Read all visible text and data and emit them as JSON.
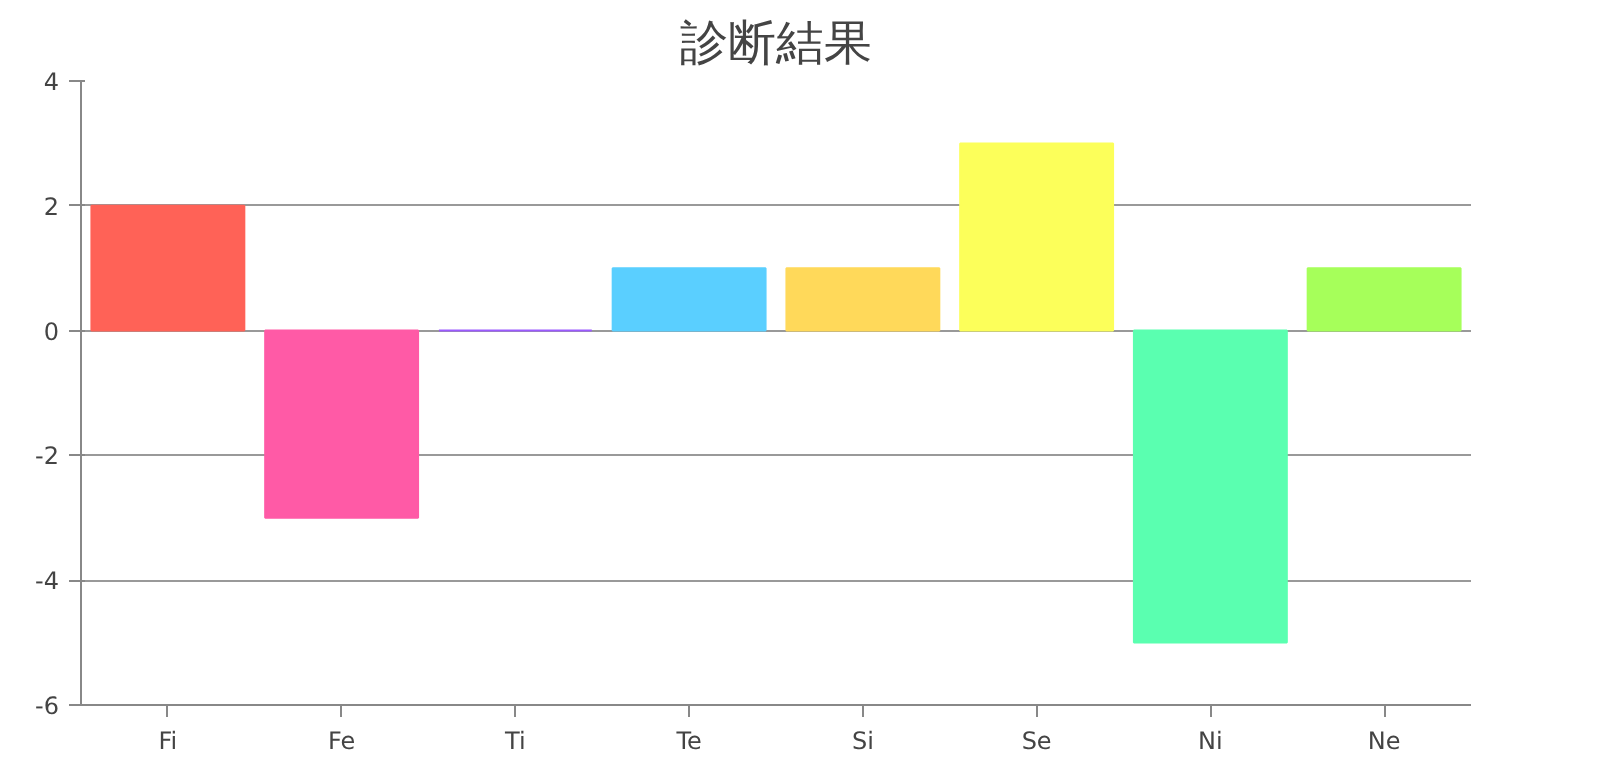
{
  "chart_data": {
    "type": "bar",
    "title": "診断結果",
    "categories": [
      "Fi",
      "Fe",
      "Ti",
      "Te",
      "Si",
      "Se",
      "Ni",
      "Ne"
    ],
    "values": [
      2,
      -3,
      0,
      1,
      1,
      3,
      -5,
      1
    ],
    "colors": [
      "#ff6257",
      "#ff5aa6",
      "#9b5aff",
      "#5acfff",
      "#ffd95a",
      "#fcff5a",
      "#5affb0",
      "#a6ff5a"
    ],
    "ylim": [
      -6,
      4
    ],
    "yticks": [
      -6,
      -4,
      -2,
      0,
      2,
      4
    ],
    "grid": "y"
  }
}
